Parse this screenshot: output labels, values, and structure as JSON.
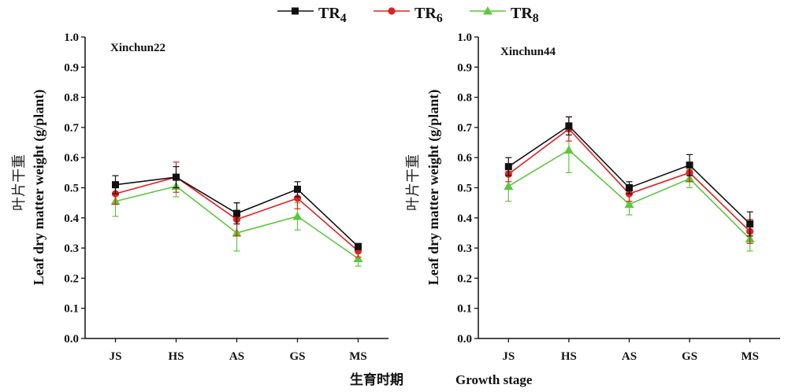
{
  "legend": {
    "items": [
      {
        "label": "TR",
        "sub": "4",
        "color": "#111111",
        "marker": "square"
      },
      {
        "label": "TR",
        "sub": "6",
        "color": "#e02020",
        "marker": "circle"
      },
      {
        "label": "TR",
        "sub": "8",
        "color": "#5cc83c",
        "marker": "triangle"
      }
    ]
  },
  "xaxis_label_cn": "生育时期",
  "xaxis_label_en": "Growth stage",
  "yaxis_label_cn": "叶片干重",
  "yaxis_label_en": "Leaf dry matter weight (g/plant)",
  "chart_data": [
    {
      "type": "line",
      "title": "Xinchun22",
      "categories": [
        "JS",
        "HS",
        "AS",
        "GS",
        "MS"
      ],
      "ylim": [
        0,
        1.0
      ],
      "yticks": [
        "0.0",
        "0.1",
        "0.2",
        "0.3",
        "0.4",
        "0.5",
        "0.6",
        "0.7",
        "0.8",
        "0.9",
        "1.0"
      ],
      "series": [
        {
          "name": "TR4",
          "color": "#111111",
          "marker": "square",
          "values": [
            0.51,
            0.535,
            0.415,
            0.495,
            0.305
          ],
          "errors": [
            0.03,
            0.035,
            0.035,
            0.025,
            0.01
          ]
        },
        {
          "name": "TR6",
          "color": "#e02020",
          "marker": "circle",
          "values": [
            0.48,
            0.535,
            0.395,
            0.465,
            0.29
          ],
          "errors": [
            0.035,
            0.05,
            0.055,
            0.035,
            0.02
          ]
        },
        {
          "name": "TR8",
          "color": "#5cc83c",
          "marker": "triangle",
          "values": [
            0.455,
            0.505,
            0.35,
            0.405,
            0.265
          ],
          "errors": [
            0.05,
            0.035,
            0.06,
            0.045,
            0.025
          ]
        }
      ]
    },
    {
      "type": "line",
      "title": "Xinchun44",
      "categories": [
        "JS",
        "HS",
        "AS",
        "GS",
        "MS"
      ],
      "ylim": [
        0,
        1.0
      ],
      "yticks": [
        "0.0",
        "0.1",
        "0.2",
        "0.3",
        "0.4",
        "0.5",
        "0.6",
        "0.7",
        "0.8",
        "0.9",
        "1.0"
      ],
      "series": [
        {
          "name": "TR4",
          "color": "#111111",
          "marker": "square",
          "values": [
            0.57,
            0.705,
            0.5,
            0.575,
            0.38
          ],
          "errors": [
            0.03,
            0.03,
            0.02,
            0.035,
            0.04
          ]
        },
        {
          "name": "TR6",
          "color": "#e02020",
          "marker": "circle",
          "values": [
            0.545,
            0.695,
            0.48,
            0.55,
            0.355
          ],
          "errors": [
            0.025,
            0.04,
            0.025,
            0.03,
            0.04
          ]
        },
        {
          "name": "TR8",
          "color": "#5cc83c",
          "marker": "triangle",
          "values": [
            0.505,
            0.625,
            0.445,
            0.53,
            0.33
          ],
          "errors": [
            0.05,
            0.075,
            0.035,
            0.03,
            0.04
          ]
        }
      ]
    }
  ]
}
